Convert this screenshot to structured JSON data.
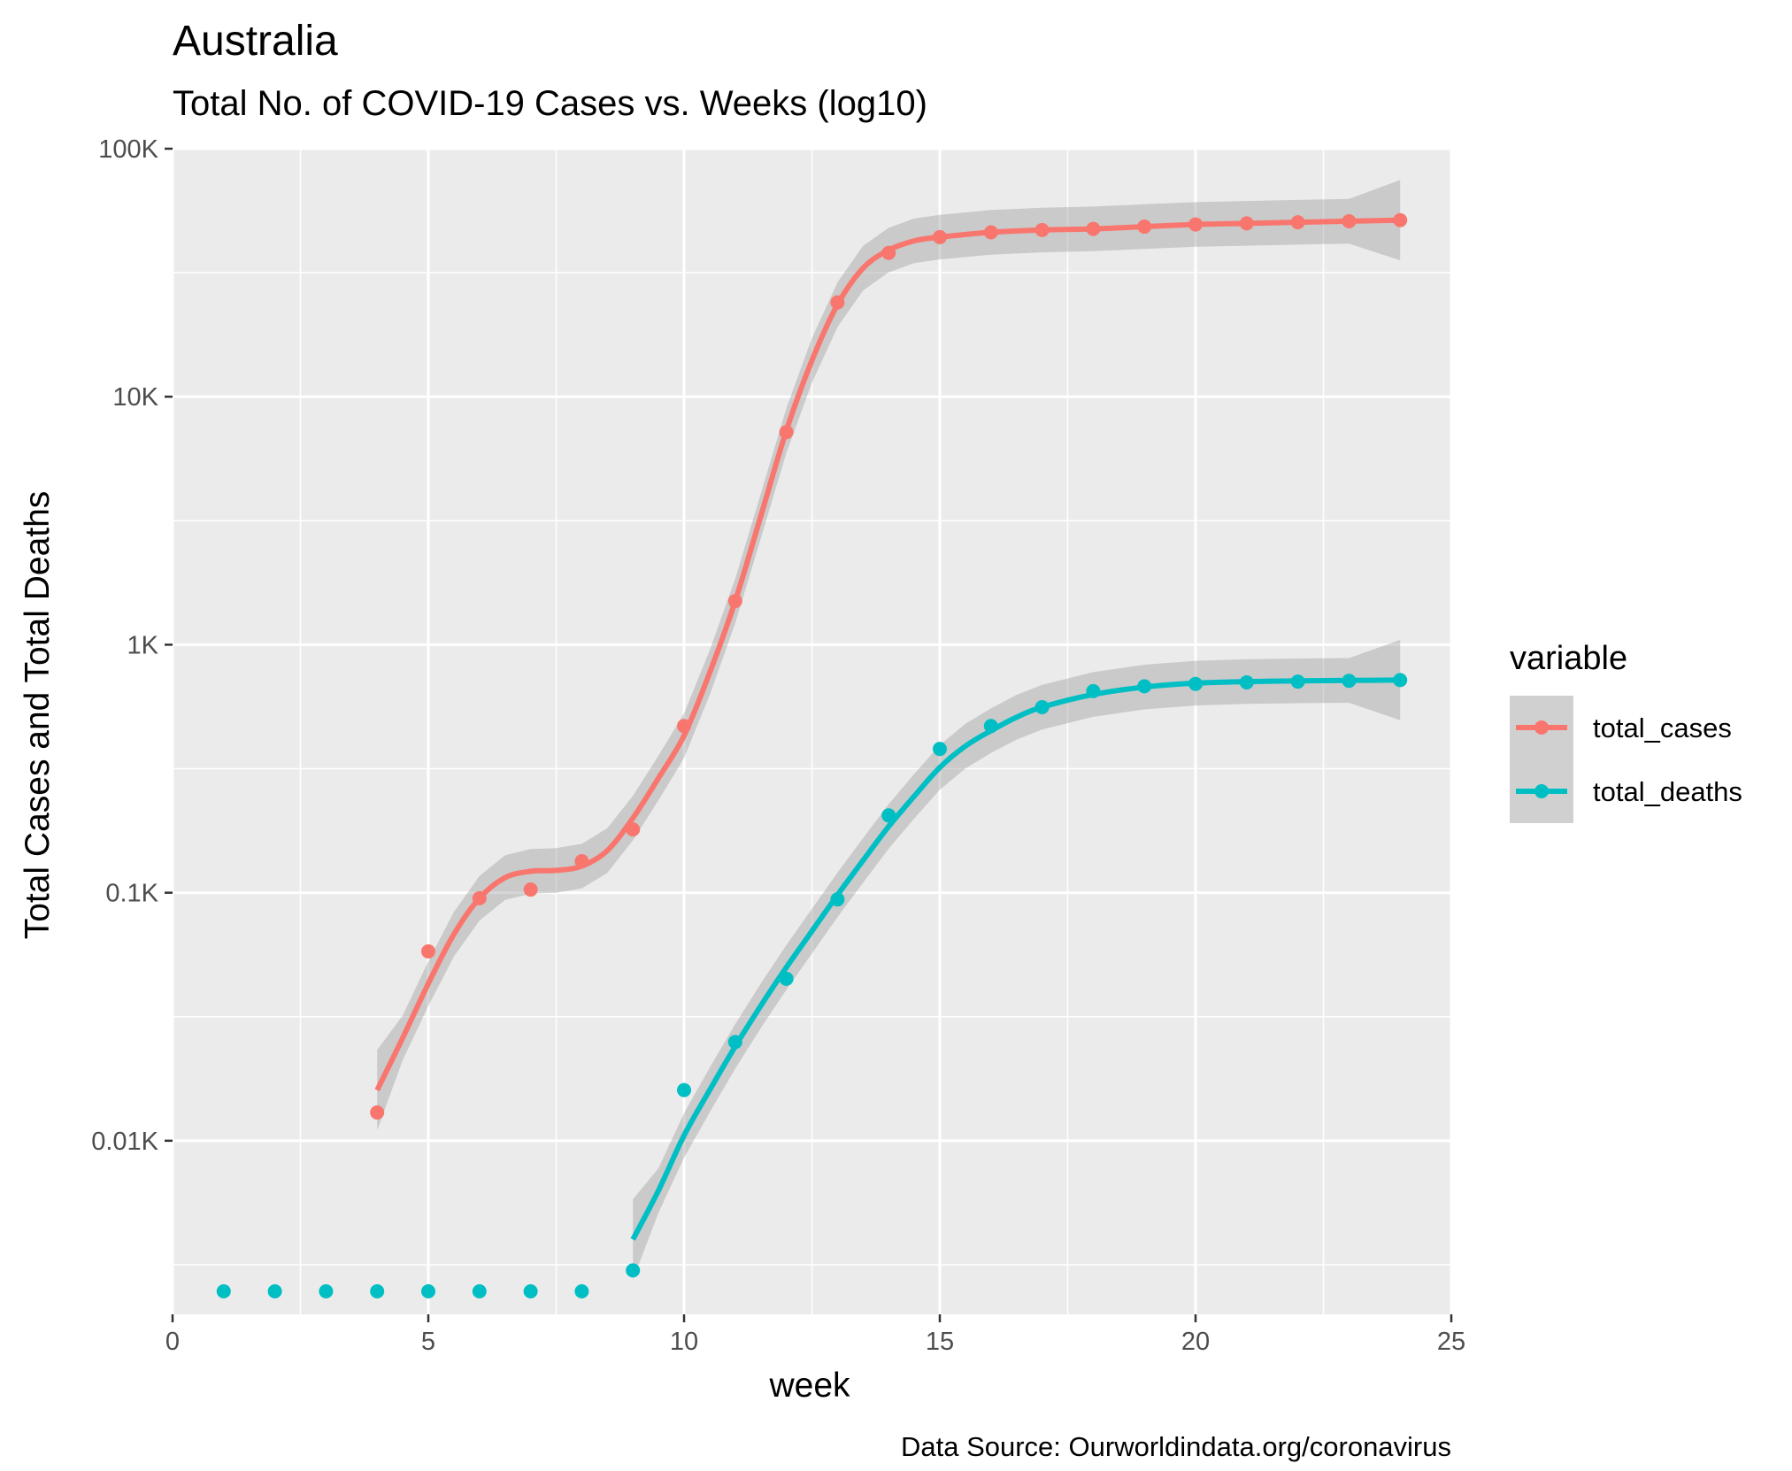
{
  "chart_data": {
    "type": "line",
    "title": "Australia",
    "subtitle": "Total No. of COVID-19 Cases vs. Weeks (log10)",
    "xlabel": "week",
    "ylabel": "Total Cases and Total Deaths",
    "caption": "Data Source: Ourworldindata.org/coronavirus",
    "y_scale": "log10",
    "xlim": [
      0,
      25
    ],
    "ylim_log10": [
      0.3,
      5.0
    ],
    "x_ticks": [
      0,
      5,
      10,
      15,
      20,
      25
    ],
    "y_ticks": [
      {
        "value": 10,
        "label": "0.01K"
      },
      {
        "value": 100,
        "label": "0.1K"
      },
      {
        "value": 1000,
        "label": "1K"
      },
      {
        "value": 10000,
        "label": "10K"
      },
      {
        "value": 100000,
        "label": "100K"
      }
    ],
    "grid": true,
    "legend": {
      "title": "variable",
      "position": "right"
    },
    "series": [
      {
        "name": "total_cases",
        "color": "#F8766D",
        "x": [
          4,
          5,
          6,
          7,
          8,
          9,
          10,
          11,
          12,
          13,
          14,
          15,
          16,
          17,
          18,
          19,
          20,
          21,
          22,
          23,
          24
        ],
        "values": [
          13,
          58,
          95,
          103,
          134,
          180,
          470,
          1500,
          7200,
          24000,
          38000,
          44000,
          46000,
          47000,
          47500,
          48500,
          49500,
          50000,
          50500,
          51000,
          51500
        ],
        "smooth": {
          "x": [
            4,
            4.5,
            5,
            5.5,
            6,
            6.5,
            7,
            7.5,
            8,
            8.5,
            9,
            9.5,
            10,
            10.5,
            11,
            11.5,
            12,
            12.5,
            13,
            13.5,
            14,
            14.5,
            15,
            16,
            17,
            18,
            19,
            20,
            21,
            22,
            23,
            24
          ],
          "values": [
            16,
            26,
            43,
            68,
            95,
            115,
            122,
            123,
            128,
            148,
            200,
            290,
            430,
            770,
            1500,
            3300,
            7300,
            14000,
            23500,
            33000,
            39000,
            42500,
            44000,
            46000,
            47000,
            47500,
            48500,
            49500,
            50000,
            50500,
            51000,
            51500
          ]
        }
      },
      {
        "name": "total_deaths",
        "color": "#00BFC4",
        "x": [
          1,
          2,
          3,
          4,
          5,
          6,
          7,
          8,
          9,
          10,
          11,
          12,
          13,
          14,
          15,
          16,
          17,
          18,
          19,
          20,
          21,
          22,
          23,
          24
        ],
        "values": [
          0,
          0,
          0,
          0,
          0,
          0,
          0,
          0,
          3,
          16,
          25,
          45,
          94,
          205,
          380,
          470,
          560,
          650,
          680,
          695,
          705,
          710,
          715,
          720
        ],
        "smooth": {
          "x": [
            9,
            9.5,
            10,
            10.5,
            11,
            11.5,
            12,
            12.5,
            13,
            13.5,
            14,
            14.5,
            15,
            15.5,
            16,
            16.5,
            17,
            18,
            19,
            20,
            21,
            22,
            23,
            24
          ],
          "values": [
            4,
            6.3,
            10.5,
            16,
            24,
            35,
            50,
            70,
            98,
            135,
            185,
            245,
            320,
            390,
            450,
            510,
            560,
            630,
            675,
            700,
            710,
            715,
            718,
            720
          ]
        }
      }
    ]
  }
}
